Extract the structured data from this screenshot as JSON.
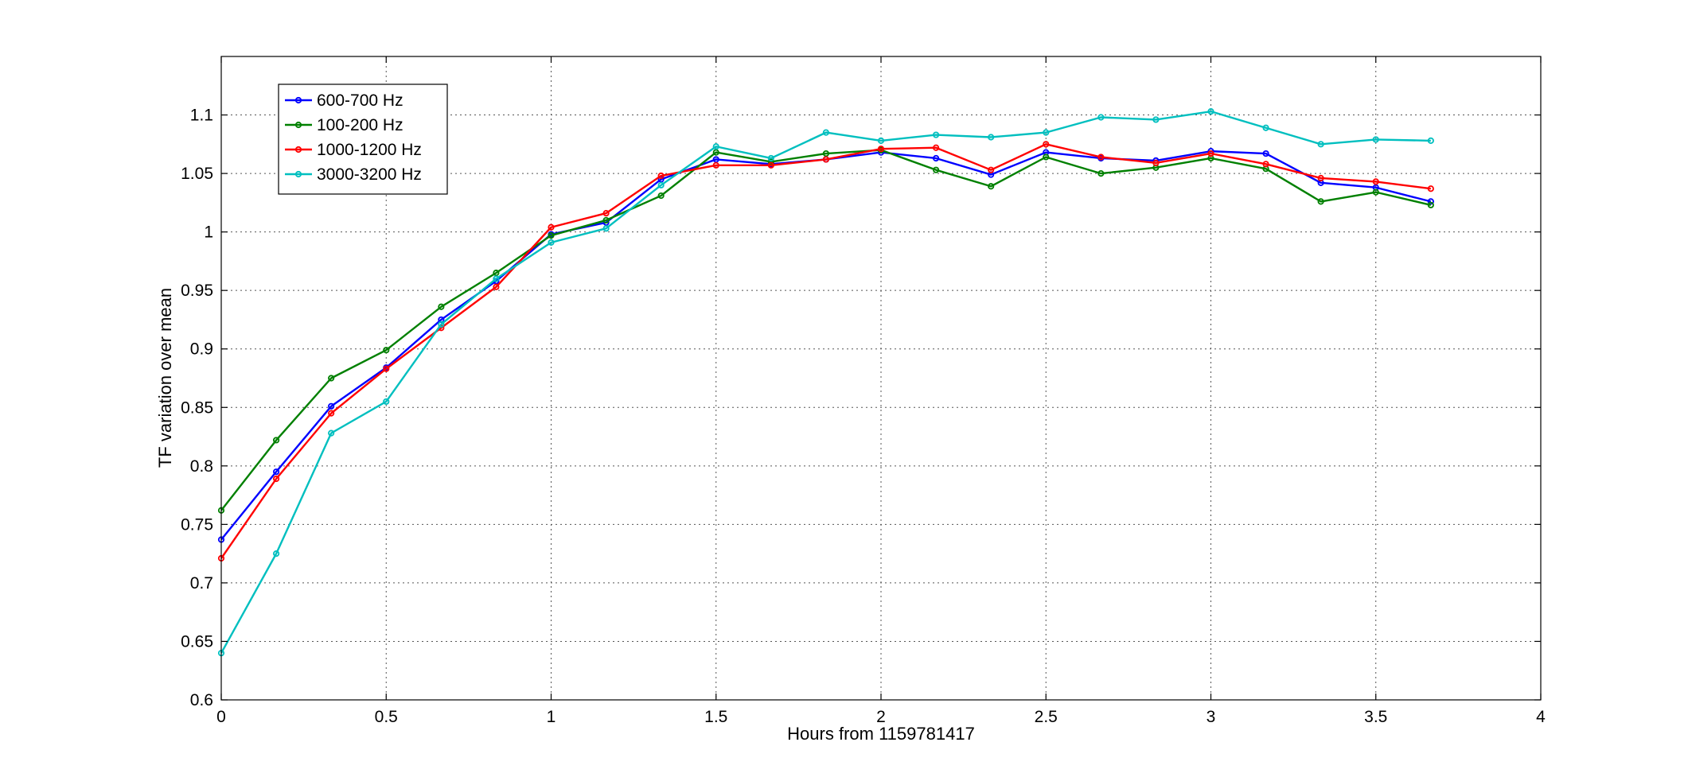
{
  "chart_data": {
    "type": "line",
    "title": "",
    "xlabel": "Hours from 1159781417",
    "ylabel": "TF variation over mean",
    "xlim": [
      0,
      4
    ],
    "ylim": [
      0.6,
      1.15
    ],
    "xticks": [
      0,
      0.5,
      1,
      1.5,
      2,
      2.5,
      3,
      3.5,
      4
    ],
    "xtick_labels": [
      "0",
      "0.5",
      "1",
      "1.5",
      "2",
      "2.5",
      "3",
      "3.5",
      "4"
    ],
    "yticks": [
      0.6,
      0.65,
      0.7,
      0.75,
      0.8,
      0.85,
      0.9,
      0.95,
      1,
      1.05,
      1.1
    ],
    "ytick_labels": [
      "0.6",
      "0.65",
      "0.7",
      "0.75",
      "0.8",
      "0.85",
      "0.9",
      "0.95",
      "1",
      "1.05",
      "1.1"
    ],
    "grid": true,
    "legend_position": "top-left",
    "x": [
      0,
      0.1667,
      0.3333,
      0.5,
      0.6667,
      0.8333,
      1,
      1.1667,
      1.3333,
      1.5,
      1.6667,
      1.8333,
      2,
      2.1667,
      2.3333,
      2.5,
      2.6667,
      2.8333,
      3,
      3.1667,
      3.3333,
      3.5,
      3.6667
    ],
    "series": [
      {
        "name": "600-700 Hz",
        "color": "#0000ff",
        "values": [
          0.737,
          0.795,
          0.851,
          0.884,
          0.925,
          0.958,
          0.998,
          1.008,
          1.045,
          1.062,
          1.058,
          1.062,
          1.068,
          1.063,
          1.049,
          1.068,
          1.063,
          1.061,
          1.069,
          1.067,
          1.042,
          1.038,
          1.026
        ]
      },
      {
        "name": "100-200 Hz",
        "color": "#008000",
        "values": [
          0.762,
          0.822,
          0.875,
          0.899,
          0.936,
          0.965,
          0.997,
          1.01,
          1.031,
          1.068,
          1.06,
          1.067,
          1.07,
          1.053,
          1.039,
          1.064,
          1.05,
          1.055,
          1.063,
          1.054,
          1.026,
          1.034,
          1.023
        ]
      },
      {
        "name": "1000-1200 Hz",
        "color": "#ff0000",
        "values": [
          0.721,
          0.789,
          0.845,
          0.883,
          0.918,
          0.953,
          1.004,
          1.016,
          1.048,
          1.057,
          1.057,
          1.062,
          1.071,
          1.072,
          1.053,
          1.075,
          1.064,
          1.059,
          1.067,
          1.058,
          1.046,
          1.043,
          1.037
        ]
      },
      {
        "name": "3000-3200 Hz",
        "color": "#00bfbf",
        "values": [
          0.64,
          0.725,
          0.828,
          0.855,
          0.921,
          0.96,
          0.991,
          1.003,
          1.04,
          1.073,
          1.063,
          1.085,
          1.078,
          1.083,
          1.081,
          1.085,
          1.098,
          1.096,
          1.103,
          1.089,
          1.075,
          1.079,
          1.078
        ]
      }
    ]
  }
}
